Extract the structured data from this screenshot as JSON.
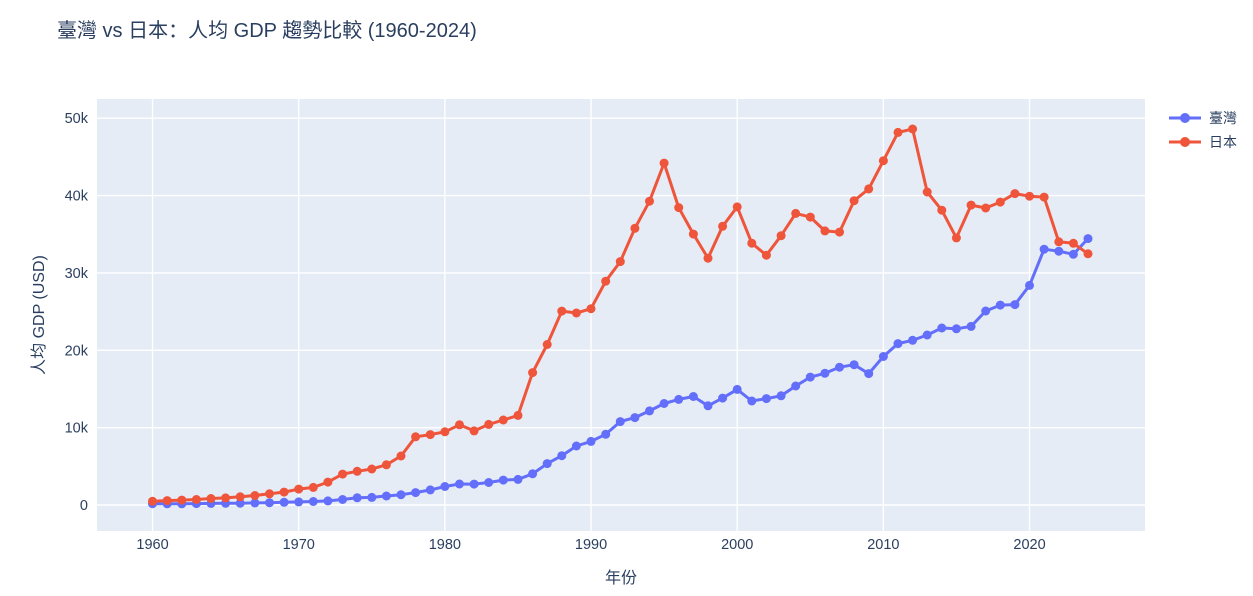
{
  "chart_data": {
    "type": "line",
    "title": "臺灣 vs 日本：人均 GDP 趨勢比較 (1960-2024)",
    "xlabel": "年份",
    "ylabel": "人均 GDP (USD)",
    "x": [
      1960,
      1961,
      1962,
      1963,
      1964,
      1965,
      1966,
      1967,
      1968,
      1969,
      1970,
      1971,
      1972,
      1973,
      1974,
      1975,
      1976,
      1977,
      1978,
      1979,
      1980,
      1981,
      1982,
      1983,
      1984,
      1985,
      1986,
      1987,
      1988,
      1989,
      1990,
      1991,
      1992,
      1993,
      1994,
      1995,
      1996,
      1997,
      1998,
      1999,
      2000,
      2001,
      2002,
      2003,
      2004,
      2005,
      2006,
      2007,
      2008,
      2009,
      2010,
      2011,
      2012,
      2013,
      2014,
      2015,
      2016,
      2017,
      2018,
      2019,
      2020,
      2021,
      2022,
      2023,
      2024
    ],
    "series": [
      {
        "name": "臺灣",
        "color": "#636efa",
        "values": [
          163,
          152,
          162,
          181,
          202,
          217,
          237,
          267,
          304,
          345,
          397,
          450,
          530,
          706,
          934,
          985,
          1158,
          1330,
          1606,
          1950,
          2389,
          2720,
          2699,
          2903,
          3224,
          3314,
          4036,
          5350,
          6370,
          7626,
          8216,
          9136,
          10778,
          11292,
          12160,
          13119,
          13650,
          14020,
          12820,
          13819,
          14941,
          13448,
          13750,
          14120,
          15388,
          16532,
          17026,
          17814,
          18131,
          16988,
          19197,
          20866,
          21295,
          21973,
          22874,
          22780,
          23091,
          25080,
          25838,
          25908,
          28383,
          33059,
          32811,
          32404,
          34430
        ]
      },
      {
        "name": "日本",
        "color": "#ef553b",
        "values": [
          479,
          564,
          634,
          718,
          836,
          920,
          1058,
          1229,
          1451,
          1669,
          2056,
          2272,
          2967,
          3998,
          4353,
          4659,
          5198,
          6335,
          8821,
          9105,
          9465,
          10361,
          9578,
          10425,
          10985,
          11585,
          17112,
          20745,
          25059,
          24813,
          25371,
          28925,
          31465,
          35766,
          39269,
          44197,
          38437,
          35022,
          31903,
          36027,
          38532,
          33846,
          32289,
          34808,
          37688,
          37217,
          35433,
          35275,
          39339,
          40855,
          44507,
          48168,
          48603,
          40454,
          38109,
          34524,
          38762,
          38387,
          39159,
          40247,
          39918,
          39803,
          34017,
          33834,
          32476
        ]
      }
    ],
    "xticks": {
      "values": [
        1960,
        1970,
        1980,
        1990,
        2000,
        2010,
        2020
      ],
      "labels": [
        "1960",
        "1970",
        "1980",
        "1990",
        "2000",
        "2010",
        "2020"
      ]
    },
    "yticks": {
      "values": [
        0,
        10000,
        20000,
        30000,
        40000,
        50000
      ],
      "labels": [
        "0",
        "10k",
        "20k",
        "30k",
        "40k",
        "50k"
      ]
    },
    "xlim": [
      1956.2,
      2027.9
    ],
    "ylim": [
      -3360,
      52480
    ],
    "grid": true,
    "legend_position": "top-right-outside",
    "colors": {
      "paper_bg": "#ffffff",
      "plot_bg": "#e5ecf6",
      "grid": "#ffffff",
      "text": "#2a3f5f"
    }
  }
}
